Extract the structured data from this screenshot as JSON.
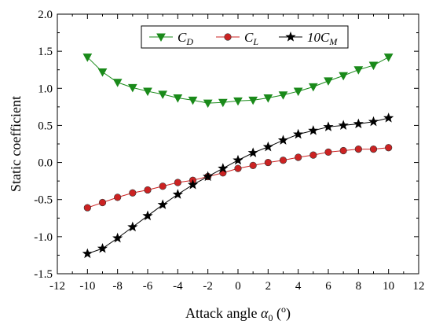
{
  "chart_data": {
    "type": "line",
    "xlabel": {
      "main": "Attack angle ",
      "symbol": "α",
      "sub": "0",
      "unit_open": " (",
      "unit_sup": "o",
      "unit_close": ")"
    },
    "ylabel": "Static coefficient",
    "xlim": [
      -12,
      12
    ],
    "ylim": [
      -1.5,
      2.0
    ],
    "xticks": [
      -12,
      -10,
      -8,
      -6,
      -4,
      -2,
      0,
      2,
      4,
      6,
      8,
      10,
      12
    ],
    "yticks": [
      -1.5,
      -1.0,
      -0.5,
      0.0,
      0.5,
      1.0,
      1.5,
      2.0
    ],
    "ytick_labels": [
      "-1.5",
      "-1.0",
      "-0.5",
      "0.0",
      "0.5",
      "1.0",
      "1.5",
      "2.0"
    ],
    "grid": false,
    "legend_position": "top-center",
    "x": [
      -10,
      -9,
      -8,
      -7,
      -6,
      -5,
      -4,
      -3,
      -2,
      -1,
      0,
      1,
      2,
      3,
      4,
      5,
      6,
      7,
      8,
      9,
      10
    ],
    "series": [
      {
        "name": "C_D",
        "legend": {
          "base": "C",
          "sub": "D"
        },
        "color": "#1a8a1a",
        "marker": "triangle-down",
        "values": [
          1.42,
          1.22,
          1.08,
          1.01,
          0.96,
          0.92,
          0.87,
          0.84,
          0.8,
          0.81,
          0.83,
          0.84,
          0.87,
          0.91,
          0.96,
          1.02,
          1.1,
          1.17,
          1.25,
          1.31,
          1.42
        ]
      },
      {
        "name": "C_L",
        "legend": {
          "base": "C",
          "sub": "L"
        },
        "color": "#cc2222",
        "marker": "circle",
        "values": [
          -0.61,
          -0.54,
          -0.47,
          -0.41,
          -0.37,
          -0.32,
          -0.27,
          -0.24,
          -0.19,
          -0.14,
          -0.08,
          -0.04,
          0.0,
          0.03,
          0.07,
          0.1,
          0.14,
          0.16,
          0.18,
          0.18,
          0.2
        ]
      },
      {
        "name": "10C_M",
        "legend": {
          "base": "10C",
          "sub": "M"
        },
        "color": "#000000",
        "marker": "star",
        "values": [
          -1.23,
          -1.16,
          -1.02,
          -0.87,
          -0.72,
          -0.57,
          -0.43,
          -0.3,
          -0.19,
          -0.08,
          0.03,
          0.13,
          0.21,
          0.3,
          0.38,
          0.43,
          0.48,
          0.5,
          0.52,
          0.55,
          0.6
        ]
      }
    ]
  }
}
